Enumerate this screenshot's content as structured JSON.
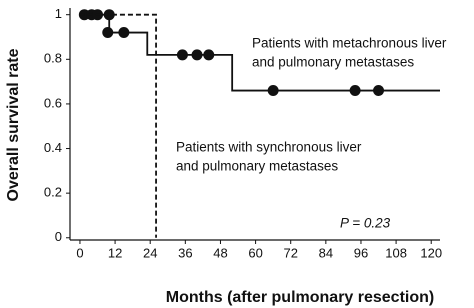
{
  "chart_data": {
    "type": "km",
    "xlabel": "Months (after pulmonary resection)",
    "ylabel": "Overall survival rate",
    "xlim": [
      -3.4,
      123
    ],
    "ylim": [
      -0.01,
      1.03
    ],
    "xticks": [
      0,
      12,
      24,
      36,
      48,
      60,
      72,
      84,
      96,
      108,
      120
    ],
    "yticks": [
      0,
      0.2,
      0.4,
      0.6,
      0.8,
      1
    ],
    "annotation": "P = 0.23",
    "color": "#111111",
    "series": [
      {
        "name": [
          "Patients with metachronous liver",
          "and pulmonary metastases"
        ],
        "dashed": false,
        "x": [
          0,
          10,
          23,
          52,
          123
        ],
        "values": [
          1,
          0.92,
          0.82,
          0.66,
          0.66
        ],
        "censored_x": [
          1.5,
          4,
          6,
          10,
          9.5,
          15,
          35,
          40,
          44,
          66,
          94,
          102
        ],
        "censored_values": [
          1,
          1,
          1,
          1,
          0.92,
          0.92,
          0.82,
          0.82,
          0.82,
          0.66,
          0.66,
          0.66
        ]
      },
      {
        "name": [
          "Patients with synchronous liver",
          "and pulmonary metastases"
        ],
        "dashed": true,
        "x": [
          0,
          26,
          26
        ],
        "values": [
          1,
          1,
          0
        ],
        "censored_x": [],
        "censored_values": []
      }
    ]
  }
}
